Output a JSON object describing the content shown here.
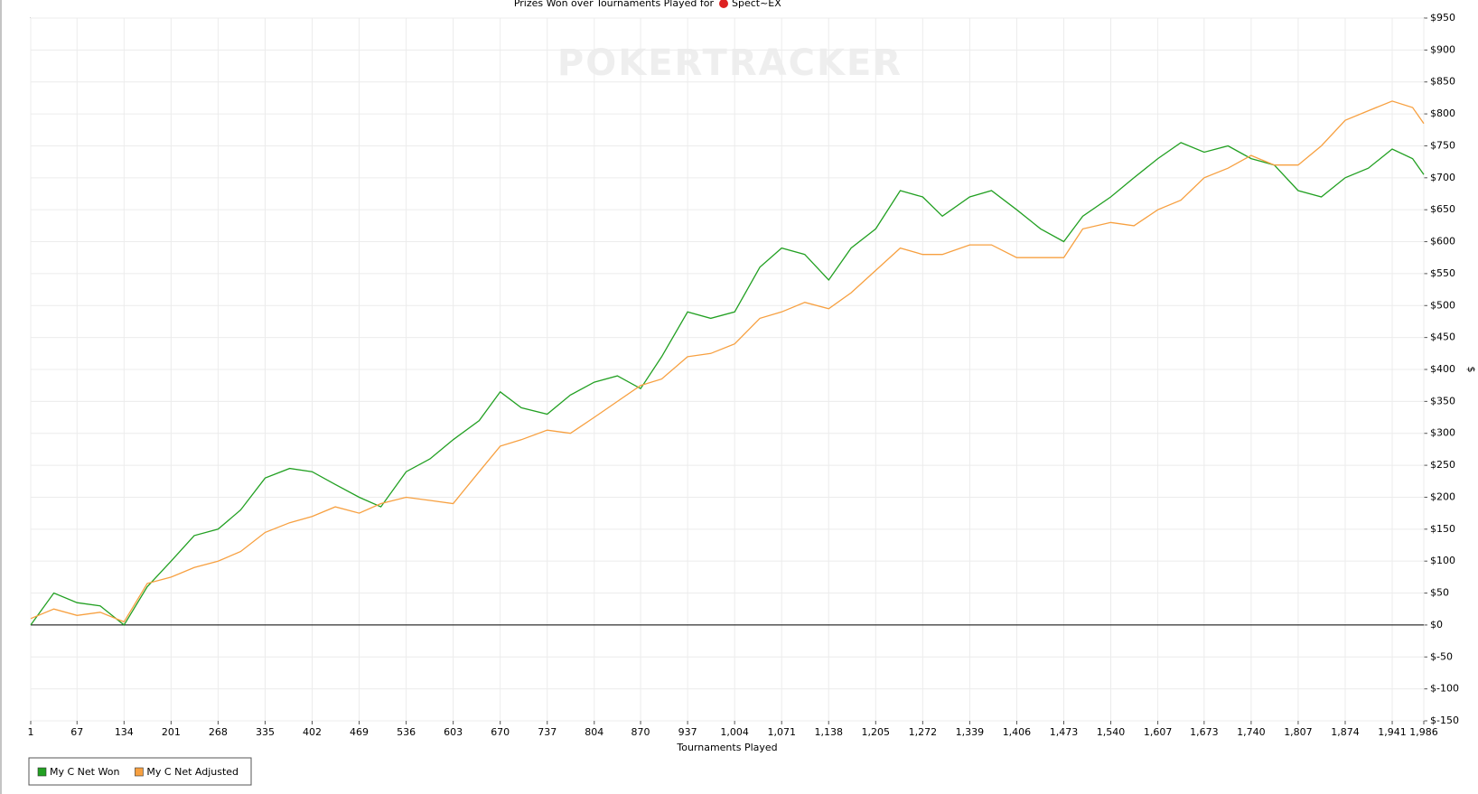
{
  "chart_data": {
    "type": "line",
    "title": "Prizes Won over Tournaments Played for",
    "player": "Spect~EX",
    "watermark": "POKERTRACKER",
    "x_label": "Tournaments Played",
    "y_label": "$",
    "x": [
      1,
      34,
      67,
      100,
      134,
      167,
      201,
      234,
      268,
      300,
      335,
      370,
      402,
      435,
      469,
      500,
      536,
      570,
      603,
      640,
      670,
      700,
      737,
      770,
      804,
      837,
      870,
      900,
      937,
      970,
      1004,
      1040,
      1071,
      1104,
      1138,
      1170,
      1205,
      1240,
      1272,
      1300,
      1339,
      1370,
      1406,
      1440,
      1473,
      1500,
      1540,
      1573,
      1607,
      1640,
      1673,
      1707,
      1740,
      1773,
      1807,
      1840,
      1874,
      1907,
      1941,
      1970,
      1986
    ],
    "series": [
      {
        "name": "My C Net Won",
        "color": "#22a022",
        "values": [
          0,
          50,
          35,
          30,
          0,
          60,
          100,
          140,
          150,
          180,
          230,
          245,
          240,
          220,
          200,
          185,
          240,
          260,
          290,
          320,
          365,
          340,
          330,
          360,
          380,
          390,
          370,
          420,
          490,
          480,
          490,
          560,
          590,
          580,
          540,
          590,
          620,
          680,
          670,
          640,
          670,
          680,
          650,
          620,
          600,
          640,
          670,
          700,
          730,
          755,
          740,
          750,
          730,
          720,
          680,
          670,
          700,
          715,
          745,
          730,
          705
        ]
      },
      {
        "name": "My C Net Adjusted",
        "color": "#f7a040",
        "values": [
          10,
          25,
          15,
          20,
          5,
          65,
          75,
          90,
          100,
          115,
          145,
          160,
          170,
          185,
          175,
          190,
          200,
          195,
          190,
          240,
          280,
          290,
          305,
          300,
          325,
          350,
          375,
          385,
          420,
          425,
          440,
          480,
          490,
          505,
          495,
          520,
          555,
          590,
          580,
          580,
          595,
          595,
          575,
          575,
          575,
          620,
          630,
          625,
          650,
          665,
          700,
          715,
          735,
          720,
          720,
          750,
          790,
          805,
          820,
          810,
          785
        ]
      }
    ],
    "xlim": [
      1,
      1986
    ],
    "xticks": [
      1,
      67,
      134,
      201,
      268,
      335,
      402,
      469,
      536,
      603,
      670,
      737,
      804,
      870,
      937,
      {
        "value": 1004,
        "label": "1,004"
      },
      {
        "value": 1071,
        "label": "1,071"
      },
      {
        "value": 1138,
        "label": "1,138"
      },
      {
        "value": 1205,
        "label": "1,205"
      },
      {
        "value": 1272,
        "label": "1,272"
      },
      {
        "value": 1339,
        "label": "1,339"
      },
      {
        "value": 1406,
        "label": "1,406"
      },
      {
        "value": 1473,
        "label": "1,473"
      },
      {
        "value": 1540,
        "label": "1,540"
      },
      {
        "value": 1607,
        "label": "1,607"
      },
      {
        "value": 1673,
        "label": "1,673"
      },
      {
        "value": 1740,
        "label": "1,740"
      },
      {
        "value": 1807,
        "label": "1,807"
      },
      {
        "value": 1874,
        "label": "1,874"
      },
      {
        "value": 1941,
        "label": "1,941"
      },
      {
        "value": 1986,
        "label": "1,986"
      }
    ],
    "ylim": [
      -150,
      950
    ],
    "yticks": [
      {
        "value": -150,
        "label": "$-150"
      },
      {
        "value": -100,
        "label": "$-100"
      },
      {
        "value": -50,
        "label": "$-50"
      },
      {
        "value": 0,
        "label": "$0"
      },
      {
        "value": 50,
        "label": "$50"
      },
      {
        "value": 100,
        "label": "$100"
      },
      {
        "value": 150,
        "label": "$150"
      },
      {
        "value": 200,
        "label": "$200"
      },
      {
        "value": 250,
        "label": "$250"
      },
      {
        "value": 300,
        "label": "$300"
      },
      {
        "value": 350,
        "label": "$350"
      },
      {
        "value": 400,
        "label": "$400"
      },
      {
        "value": 450,
        "label": "$450"
      },
      {
        "value": 500,
        "label": "$500"
      },
      {
        "value": 550,
        "label": "$550"
      },
      {
        "value": 600,
        "label": "$600"
      },
      {
        "value": 650,
        "label": "$650"
      },
      {
        "value": 700,
        "label": "$700"
      },
      {
        "value": 750,
        "label": "$750"
      },
      {
        "value": 800,
        "label": "$800"
      },
      {
        "value": 850,
        "label": "$850"
      },
      {
        "value": 900,
        "label": "$900"
      },
      {
        "value": 950,
        "label": "$950"
      }
    ],
    "grid": true
  }
}
